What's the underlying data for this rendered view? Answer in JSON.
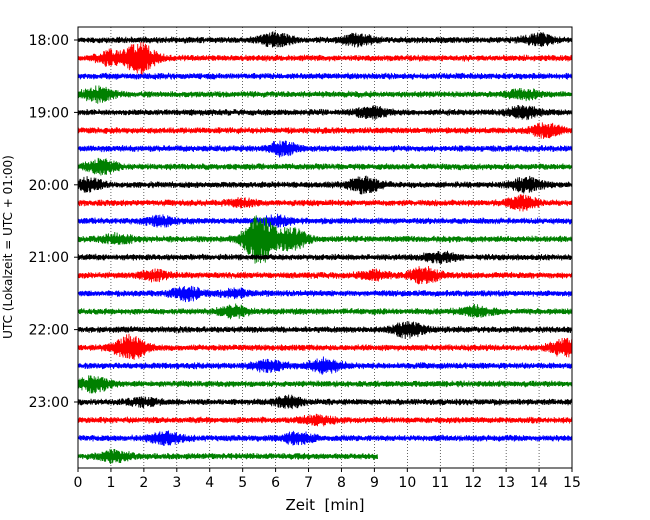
{
  "chart_data": {
    "type": "line",
    "title": "",
    "xlabel": "Zeit  [min]",
    "ylabel": "UTC (Lokalzeit = UTC + 01:00)",
    "xlim": [
      0,
      15
    ],
    "x_ticks": [
      "0",
      "1",
      "2",
      "3",
      "4",
      "5",
      "6",
      "7",
      "8",
      "9",
      "10",
      "11",
      "12",
      "13",
      "14",
      "15"
    ],
    "y_tick_labels": [
      "18:00",
      "19:00",
      "20:00",
      "21:00",
      "22:00",
      "23:00"
    ],
    "grid": "vertical dotted lines at each minute",
    "trace_interval_minutes": 15,
    "trace_colors": [
      "#000000",
      "#ff0000",
      "#0000ff",
      "#008000"
    ],
    "traces": [
      {
        "start": "18:00",
        "color": "#000000",
        "bursts": [
          [
            6.0,
            6
          ],
          [
            8.5,
            5
          ],
          [
            14.0,
            5
          ]
        ]
      },
      {
        "start": "18:15",
        "color": "#ff0000",
        "bursts": [
          [
            1.9,
            14
          ],
          [
            1.0,
            6
          ]
        ]
      },
      {
        "start": "18:30",
        "color": "#0000ff",
        "bursts": []
      },
      {
        "start": "18:45",
        "color": "#008000",
        "bursts": [
          [
            0.6,
            6
          ],
          [
            13.5,
            4
          ]
        ]
      },
      {
        "start": "19:00",
        "color": "#000000",
        "bursts": [
          [
            8.9,
            5
          ],
          [
            13.5,
            5
          ]
        ]
      },
      {
        "start": "19:15",
        "color": "#ff0000",
        "bursts": [
          [
            14.2,
            6
          ]
        ]
      },
      {
        "start": "19:30",
        "color": "#0000ff",
        "bursts": [
          [
            6.2,
            6
          ]
        ]
      },
      {
        "start": "19:45",
        "color": "#008000",
        "bursts": [
          [
            0.7,
            6
          ]
        ]
      },
      {
        "start": "20:00",
        "color": "#000000",
        "bursts": [
          [
            0.3,
            6
          ],
          [
            8.7,
            7
          ],
          [
            13.6,
            6
          ]
        ]
      },
      {
        "start": "20:15",
        "color": "#ff0000",
        "bursts": [
          [
            13.5,
            6
          ],
          [
            5.0,
            3
          ]
        ]
      },
      {
        "start": "20:30",
        "color": "#0000ff",
        "bursts": [
          [
            2.5,
            4
          ],
          [
            6.0,
            4
          ]
        ]
      },
      {
        "start": "20:45",
        "color": "#008000",
        "bursts": [
          [
            5.5,
            24
          ],
          [
            6.5,
            10
          ],
          [
            1.2,
            4
          ]
        ]
      },
      {
        "start": "21:00",
        "color": "#000000",
        "bursts": [
          [
            11.0,
            4
          ]
        ]
      },
      {
        "start": "21:15",
        "color": "#ff0000",
        "bursts": [
          [
            10.5,
            7
          ],
          [
            2.3,
            4
          ],
          [
            9.0,
            4
          ]
        ]
      },
      {
        "start": "21:30",
        "color": "#0000ff",
        "bursts": [
          [
            3.3,
            6
          ],
          [
            4.8,
            3
          ]
        ]
      },
      {
        "start": "21:45",
        "color": "#008000",
        "bursts": [
          [
            4.7,
            5
          ],
          [
            12.1,
            4
          ]
        ]
      },
      {
        "start": "22:00",
        "color": "#000000",
        "bursts": [
          [
            10.0,
            7
          ]
        ]
      },
      {
        "start": "22:15",
        "color": "#ff0000",
        "bursts": [
          [
            1.6,
            12
          ],
          [
            14.8,
            8
          ]
        ]
      },
      {
        "start": "22:30",
        "color": "#0000ff",
        "bursts": [
          [
            7.5,
            7
          ],
          [
            5.8,
            5
          ]
        ]
      },
      {
        "start": "22:45",
        "color": "#008000",
        "bursts": [
          [
            0.5,
            7
          ]
        ]
      },
      {
        "start": "23:00",
        "color": "#000000",
        "bursts": [
          [
            6.4,
            5
          ],
          [
            2.0,
            3
          ]
        ]
      },
      {
        "start": "23:15",
        "color": "#ff0000",
        "bursts": [
          [
            7.3,
            4
          ]
        ]
      },
      {
        "start": "23:30",
        "color": "#0000ff",
        "bursts": [
          [
            2.7,
            5
          ],
          [
            6.7,
            5
          ]
        ]
      },
      {
        "start": "23:45",
        "color": "#008000",
        "bursts": [
          [
            1.1,
            5
          ]
        ],
        "end_minute": 9.1
      }
    ]
  }
}
